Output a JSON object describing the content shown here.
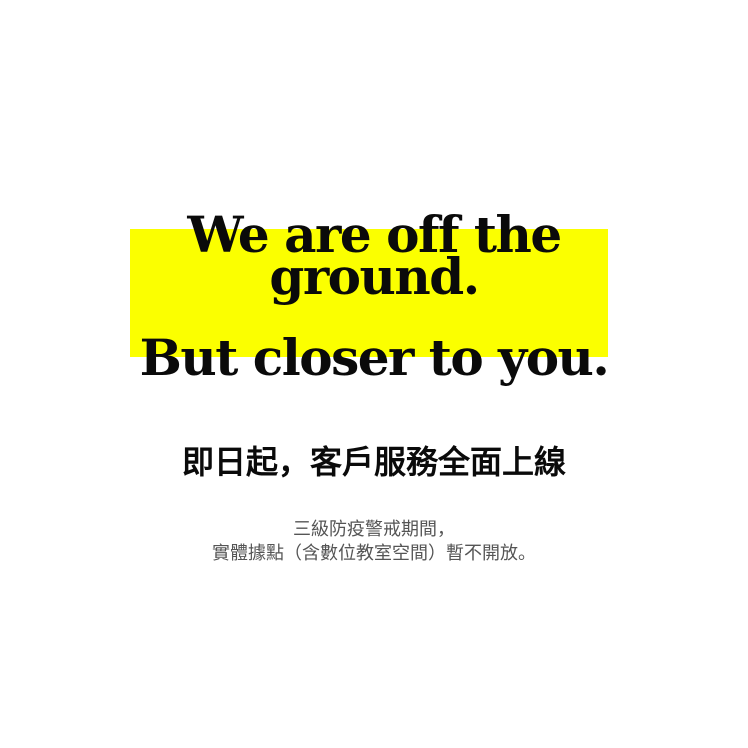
{
  "colors": {
    "background": "#ffffff",
    "highlight": "#fbff00",
    "headline_text": "#0a0a0a",
    "notice_text": "#555555"
  },
  "headline": {
    "line1": "We are off the",
    "line2": "ground.",
    "line3": "But closer to you."
  },
  "subheading": "即日起，客戶服務全面上線",
  "notice": {
    "line1": "三級防疫警戒期間，",
    "line2": "實體據點（含數位教室空間）暫不開放。"
  }
}
